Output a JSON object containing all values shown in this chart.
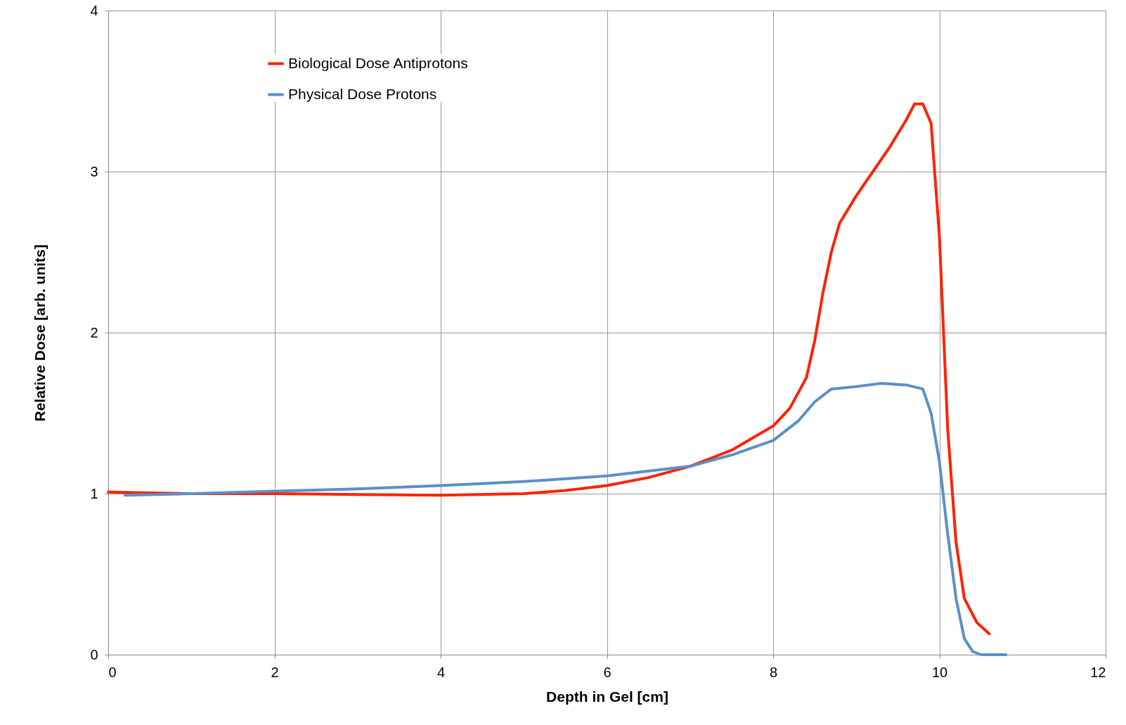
{
  "chart_data": {
    "type": "line",
    "xlabel": "Depth in Gel [cm]",
    "ylabel": "Relative Dose [arb. units]",
    "xlim": [
      0,
      12
    ],
    "xticks": [
      0,
      2,
      4,
      6,
      8,
      10,
      12
    ],
    "ylim": [
      0,
      4
    ],
    "yticks": [
      0,
      1,
      2,
      3,
      4
    ],
    "grid": true,
    "legend": "top left",
    "marker": "none",
    "line_style": "solid",
    "series": [
      {
        "name": "Biological Dose Antiprotons",
        "color": "#ff2200",
        "x": [
          0,
          1,
          2,
          3,
          4,
          5,
          5.5,
          6,
          6.5,
          7,
          7.5,
          8,
          8.2,
          8.4,
          8.5,
          8.6,
          8.7,
          8.8,
          9.0,
          9.2,
          9.4,
          9.6,
          9.7,
          9.8,
          9.9,
          10.0,
          10.1,
          10.2,
          10.3,
          10.45,
          10.6
        ],
        "values": [
          1.01,
          1.0,
          1.0,
          0.995,
          0.99,
          1.0,
          1.02,
          1.05,
          1.1,
          1.17,
          1.27,
          1.42,
          1.53,
          1.72,
          1.95,
          2.25,
          2.5,
          2.68,
          2.85,
          3.0,
          3.15,
          3.32,
          3.42,
          3.42,
          3.3,
          2.6,
          1.4,
          0.7,
          0.35,
          0.2,
          0.13
        ]
      },
      {
        "name": "Physical Dose Protons",
        "color": "#5b8fc8",
        "x": [
          0.2,
          1,
          2,
          3,
          4,
          5,
          6,
          7,
          7.5,
          8,
          8.3,
          8.5,
          8.7,
          9.0,
          9.3,
          9.6,
          9.8,
          9.9,
          10.0,
          10.1,
          10.2,
          10.3,
          10.4,
          10.5,
          10.8
        ],
        "values": [
          0.99,
          1.0,
          1.015,
          1.03,
          1.05,
          1.075,
          1.11,
          1.17,
          1.24,
          1.33,
          1.45,
          1.57,
          1.65,
          1.665,
          1.685,
          1.675,
          1.65,
          1.5,
          1.2,
          0.75,
          0.35,
          0.1,
          0.02,
          0.0,
          0.0
        ]
      }
    ]
  }
}
